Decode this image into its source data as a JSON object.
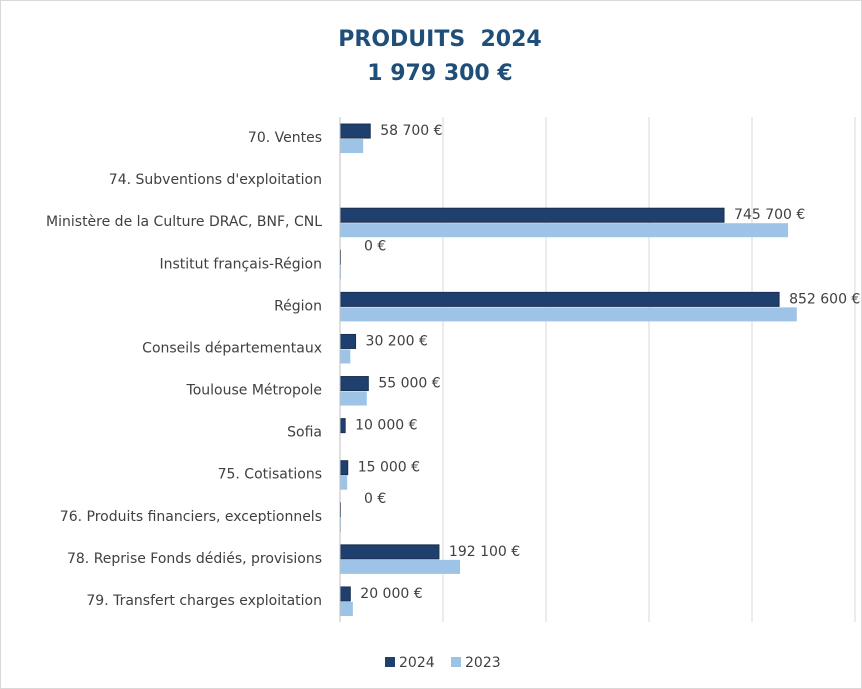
{
  "chart_data": {
    "type": "hbar",
    "title": "PRODUITS  2024",
    "subtitle": "1 979 300 €",
    "categories": [
      "70. Ventes",
      "74. Subventions d'exploitation",
      "Ministère de la Culture DRAC, BNF, CNL",
      "Institut français-Région",
      "Région",
      "Conseils départementaux",
      "Toulouse Métropole",
      "Sofia",
      "75. Cotisations",
      "76. Produits financiers, exceptionnels",
      "78. Reprise Fonds dédiés, provisions",
      "79. Transfert charges exploitation"
    ],
    "series": [
      {
        "name": "2024",
        "color": "#1f3f6e",
        "values": [
          58700,
          null,
          745700,
          0,
          852600,
          30200,
          55000,
          10000,
          15000,
          0,
          192100,
          20000
        ],
        "value_labels": [
          "58 700 €",
          null,
          "745 700 €",
          "0 €",
          "852 600 €",
          "30 200 €",
          "55 000 €",
          "10 000 €",
          "15 000 €",
          "0 €",
          "192 100 €",
          "20 000 €"
        ]
      },
      {
        "name": "2023",
        "color": "#9dc3e6",
        "values": [
          45000,
          null,
          870000,
          2000,
          887000,
          20000,
          52000,
          null,
          14000,
          2000,
          233000,
          25000
        ]
      }
    ],
    "xlim": [
      0,
      1000000
    ],
    "xticks": [
      0,
      200000,
      400000,
      600000,
      800000,
      1000000
    ],
    "grid": true
  }
}
